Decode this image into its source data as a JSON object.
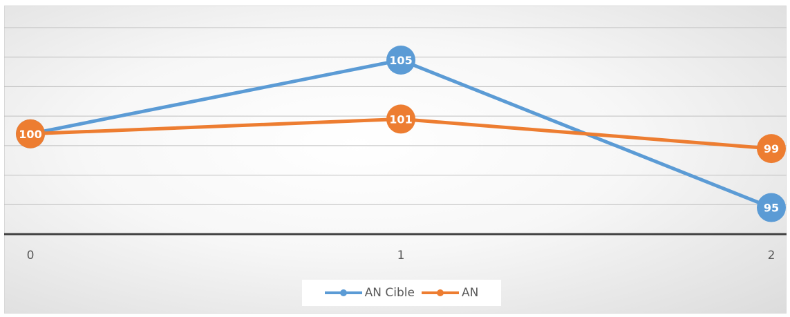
{
  "chart_data": {
    "type": "line",
    "title": "",
    "xlabel": "",
    "ylabel": "",
    "x": [
      0,
      1,
      2
    ],
    "x_tick_labels": [
      "0",
      "1",
      "2"
    ],
    "ylim": [
      93.2,
      107.2
    ],
    "y_gridlines": [
      93.2,
      95.2,
      97.2,
      99.2,
      101.2,
      103.2,
      105.2,
      107.2
    ],
    "grid": true,
    "legend_position": "bottom",
    "series": [
      {
        "name": "AN Cible",
        "values": [
          100,
          105,
          95
        ],
        "labels": [
          "100",
          "105",
          "95"
        ],
        "color": "#5b9bd5"
      },
      {
        "name": "AN",
        "values": [
          100,
          101,
          99
        ],
        "labels": [
          "100",
          "101",
          "99"
        ],
        "color": "#ed7d31"
      }
    ]
  }
}
